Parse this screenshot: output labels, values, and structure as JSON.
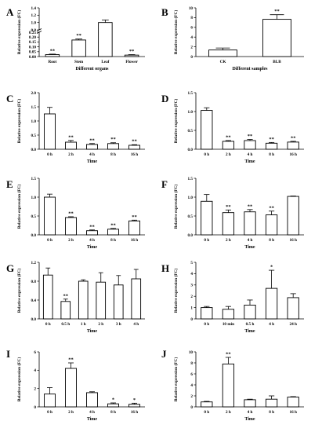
{
  "figure": {
    "chart_data": [
      {
        "panel": "A",
        "type": "bar",
        "categories": [
          "Root",
          "Stem",
          "Leaf",
          "Flower"
        ],
        "values": [
          0.02,
          0.17,
          1.0,
          0.015
        ],
        "errors": [
          0.005,
          0.01,
          0.07,
          0.005
        ],
        "significance": [
          "**",
          "**",
          "",
          "**"
        ],
        "xlabel": "Different organs",
        "ylabel": "Relative expression (FC)",
        "ylim": [
          0,
          1.4
        ],
        "yticks": [
          "0.00",
          "0.05",
          "0.10",
          "0.15",
          "0.20",
          "0.25",
          "0.8",
          "1.0",
          "1.2",
          "1.4"
        ],
        "broken_axis": {
          "lower": [
            0,
            0.25
          ],
          "upper": [
            0.8,
            1.4
          ]
        }
      },
      {
        "panel": "B",
        "type": "bar",
        "categories": [
          "CK",
          "BLB"
        ],
        "values": [
          1.35,
          7.65
        ],
        "errors": [
          0.4,
          0.95
        ],
        "significance": [
          "",
          "**"
        ],
        "xlabel": "Different samples",
        "ylabel": "Relative expression (FC)",
        "ylim": [
          0,
          10
        ],
        "yticks": [
          "0",
          "2",
          "4",
          "6",
          "8",
          "10"
        ]
      },
      {
        "panel": "C",
        "type": "bar",
        "categories": [
          "0 h",
          "2 h",
          "4 h",
          "8 h",
          "16 h"
        ],
        "values": [
          1.25,
          0.25,
          0.17,
          0.2,
          0.14
        ],
        "errors": [
          0.23,
          0.06,
          0.03,
          0.03,
          0.02
        ],
        "significance": [
          "",
          "**",
          "**",
          "**",
          "**"
        ],
        "xlabel": "Time",
        "ylabel": "Relative expression (FC)",
        "ylim": [
          0,
          2.0
        ],
        "yticks": [
          "0.0",
          "0.5",
          "1.0",
          "1.5",
          "2.0"
        ]
      },
      {
        "panel": "D",
        "type": "bar",
        "categories": [
          "0 h",
          "2 h",
          "4 h",
          "8 h",
          "16 h"
        ],
        "values": [
          1.03,
          0.21,
          0.23,
          0.16,
          0.19
        ],
        "errors": [
          0.07,
          0.02,
          0.03,
          0.02,
          0.02
        ],
        "significance": [
          "",
          "**",
          "**",
          "**",
          "**"
        ],
        "xlabel": "Time",
        "ylabel": "Relative expression (FC)",
        "ylim": [
          0,
          1.5
        ],
        "yticks": [
          "0.0",
          "0.5",
          "1.0",
          "1.5"
        ]
      },
      {
        "panel": "E",
        "type": "bar",
        "categories": [
          "0 h",
          "2 h",
          "4 h",
          "8 h",
          "16 h"
        ],
        "values": [
          1.0,
          0.46,
          0.11,
          0.15,
          0.37
        ],
        "errors": [
          0.08,
          0.02,
          0.02,
          0.02,
          0.02
        ],
        "significance": [
          "",
          "**",
          "**",
          "**",
          "**"
        ],
        "xlabel": "Time",
        "ylabel": "Relative expression (FC)",
        "ylim": [
          0,
          1.5
        ],
        "yticks": [
          "0.0",
          "0.5",
          "1.0",
          "1.5"
        ]
      },
      {
        "panel": "F",
        "type": "bar",
        "categories": [
          "0 h",
          "2 h",
          "4 h",
          "8 h",
          "16 h"
        ],
        "values": [
          0.89,
          0.59,
          0.61,
          0.53,
          1.02
        ],
        "errors": [
          0.18,
          0.07,
          0.06,
          0.1,
          0.01
        ],
        "significance": [
          "",
          "**",
          "**",
          "**",
          ""
        ],
        "xlabel": "Time",
        "ylabel": "Relative expression (FC)",
        "ylim": [
          0,
          1.5
        ],
        "yticks": [
          "0.0",
          "0.5",
          "1.0",
          "1.5"
        ]
      },
      {
        "panel": "G",
        "type": "bar",
        "categories": [
          "0 h",
          "0.5 h",
          "1 h",
          "2 h",
          "3 h",
          "4 h"
        ],
        "values": [
          0.93,
          0.37,
          0.8,
          0.78,
          0.72,
          0.85
        ],
        "errors": [
          0.15,
          0.05,
          0.03,
          0.2,
          0.2,
          0.2
        ],
        "significance": [
          "",
          "**",
          "",
          "",
          "",
          ""
        ],
        "xlabel": "Time",
        "ylabel": "Relative expression (FC)",
        "ylim": [
          0,
          1.2
        ],
        "yticks": [
          "0.0",
          "0.4",
          "0.8",
          "1.2"
        ]
      },
      {
        "panel": "H",
        "type": "bar",
        "categories": [
          "0 h",
          "10 min",
          "0.5 h",
          "4 h",
          "24 h"
        ],
        "values": [
          1.0,
          0.85,
          1.22,
          2.7,
          1.88
        ],
        "errors": [
          0.1,
          0.25,
          0.45,
          1.6,
          0.35
        ],
        "significance": [
          "",
          "",
          "",
          "*",
          ""
        ],
        "xlabel": "Time",
        "ylabel": "Relative expression (FC)",
        "ylim": [
          0,
          5
        ],
        "yticks": [
          "0",
          "1",
          "2",
          "3",
          "4",
          "5"
        ]
      },
      {
        "panel": "I",
        "type": "bar",
        "categories": [
          "0 h",
          "2 h",
          "4 h",
          "8 h",
          "16 h"
        ],
        "values": [
          1.4,
          4.2,
          1.55,
          0.33,
          0.28
        ],
        "errors": [
          0.7,
          0.6,
          0.1,
          0.1,
          0.12
        ],
        "significance": [
          "",
          "**",
          "",
          "*",
          "*"
        ],
        "xlabel": "Time",
        "ylabel": "Relative expression (FC)",
        "ylim": [
          0,
          6
        ],
        "yticks": [
          "0",
          "2",
          "4",
          "6"
        ]
      },
      {
        "panel": "J",
        "type": "bar",
        "categories": [
          "0 h",
          "2 h",
          "4 h",
          "8 h",
          "16 h"
        ],
        "values": [
          0.9,
          7.8,
          1.3,
          1.4,
          1.78
        ],
        "errors": [
          0.1,
          1.2,
          0.1,
          0.6,
          0.08
        ],
        "significance": [
          "",
          "**",
          "",
          "",
          ""
        ],
        "xlabel": "Time",
        "ylabel": "Relative expression (FC)",
        "ylim": [
          0,
          10
        ],
        "yticks": [
          "0",
          "2",
          "4",
          "6",
          "8",
          "10"
        ]
      }
    ]
  }
}
